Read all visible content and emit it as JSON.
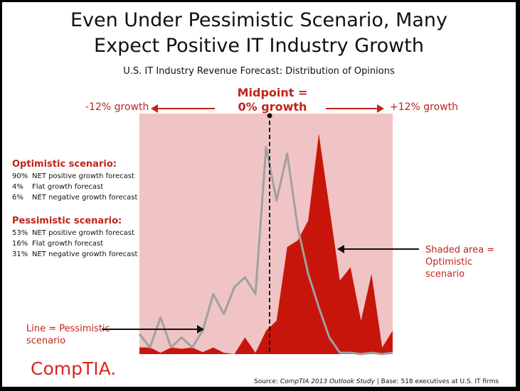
{
  "title_line1": "Even Under Pessimistic Scenario, Many",
  "title_line2": "Expect Positive IT Industry Growth",
  "chart_data": {
    "type": "area",
    "title": "U.S. IT Industry Revenue Forecast: Distribution of Opinions",
    "x_range": [
      -12,
      12
    ],
    "x_min_label": "-12% growth",
    "x_max_label": "+12% growth",
    "midpoint_label_line1": "Midpoint =",
    "midpoint_label_line2": "0% growth",
    "midpoint_x": 0,
    "series": [
      {
        "name": "Optimistic scenario",
        "style": "filled area",
        "color": "#c8150c",
        "x": [
          -12,
          -11,
          -10,
          -9,
          -8,
          -7,
          -6,
          -5,
          -4,
          -3,
          -2,
          -1,
          0,
          1,
          2,
          3,
          4,
          5,
          6,
          7,
          8,
          9,
          10,
          11,
          12
        ],
        "values": [
          1.0,
          1.0,
          0.2,
          1.0,
          0.8,
          1.0,
          0.3,
          1.0,
          0.2,
          0.0,
          2.5,
          0.2,
          3.5,
          5.0,
          16.0,
          17.0,
          20.0,
          33.0,
          22.0,
          11.0,
          13.0,
          5.0,
          12.0,
          1.0,
          3.5
        ]
      },
      {
        "name": "Pessimistic scenario",
        "style": "line",
        "color": "#a0a0a0",
        "x": [
          -12,
          -11,
          -10,
          -9,
          -8,
          -7,
          -6,
          -5,
          -4,
          -3,
          -2,
          -1,
          0,
          1,
          2,
          3,
          4,
          5,
          6,
          7,
          8,
          9,
          10,
          11,
          12
        ],
        "values": [
          3.0,
          1.0,
          5.5,
          1.0,
          2.5,
          1.0,
          3.5,
          9.0,
          6.0,
          10.0,
          11.5,
          9.0,
          31.0,
          23.0,
          30.0,
          19.0,
          12.0,
          7.0,
          2.5,
          0.2,
          0.2,
          0.0,
          0.2,
          0.0,
          0.2
        ]
      }
    ],
    "ylim": [
      0,
      36
    ],
    "background_color": "#f0c4c4"
  },
  "optimistic": {
    "heading": "Optimistic scenario:",
    "rows": [
      {
        "pct": "90%",
        "text": "NET positive growth forecast"
      },
      {
        "pct": "4%",
        "text": "Flat growth forecast"
      },
      {
        "pct": "6%",
        "text": "NET negative growth forecast"
      }
    ]
  },
  "pessimistic": {
    "heading": "Pessimistic scenario:",
    "rows": [
      {
        "pct": "53%",
        "text": "NET positive growth forecast"
      },
      {
        "pct": "16%",
        "text": "Flat growth forecast"
      },
      {
        "pct": "31%",
        "text": "NET negative growth forecast"
      }
    ]
  },
  "note_line": {
    "line1": "Line = Pessimistic",
    "line2": "scenario"
  },
  "note_shaded": {
    "line1": "Shaded area =",
    "line2": "Optimistic",
    "line3": "scenario"
  },
  "logo": "CompTIA.",
  "source": {
    "prefix": "Source: ",
    "study": "CompTIA 2013 Outlook Study",
    "suffix": " | Base: 518 executives at U.S. IT firms"
  }
}
